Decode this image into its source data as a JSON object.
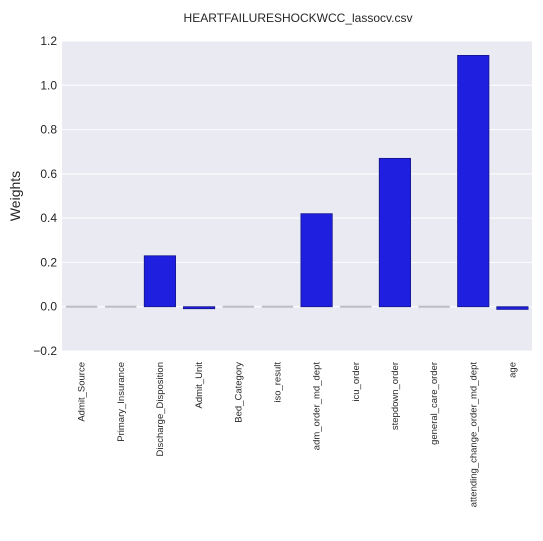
{
  "chart_data": {
    "type": "bar",
    "title": "HEARTFAILURESHOCKWCC_lassocv.csv",
    "xlabel": "",
    "ylabel": "Weights",
    "categories": [
      "Admit_Source",
      "Primary_Insurance",
      "Discharge_Disposition",
      "Admit_Unit",
      "Bed_Category",
      "iso_result",
      "adm_order_md_dept",
      "icu_order",
      "stepdown_order",
      "general_care_order",
      "attending_change_order_md_dept",
      "age"
    ],
    "values": [
      0.0,
      0.0,
      0.23,
      -0.005,
      0.0,
      0.0,
      0.42,
      0.0,
      0.67,
      0.0,
      1.135,
      -0.012
    ],
    "ylim": [
      -0.2,
      1.2
    ],
    "yticks": [
      "−0.2",
      "0.0",
      "0.2",
      "0.4",
      "0.6",
      "0.8",
      "1.0",
      "1.2"
    ],
    "grid": true,
    "colors": {
      "background": "#eaeaf2",
      "bar_fill": "#1f1fe0",
      "bar_edge": "#14148a",
      "zero_bar": "#bdbdc8",
      "grid": "#ffffff"
    }
  }
}
